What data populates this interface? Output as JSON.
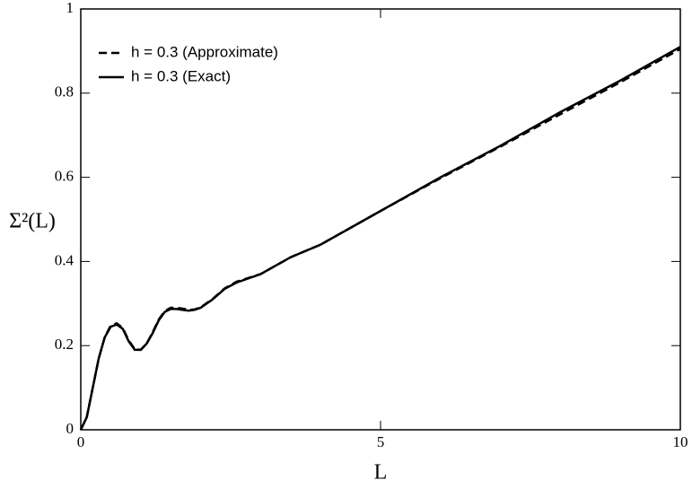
{
  "chart_data": {
    "type": "line",
    "xlabel": "L",
    "ylabel": "Σ²(L)",
    "xlim": [
      0,
      10
    ],
    "xticks": [
      0,
      5,
      10
    ],
    "ylim": [
      0,
      1
    ],
    "yticks": [
      0,
      0.2,
      0.4,
      0.6,
      0.8,
      1
    ],
    "legend": "upper-left",
    "x": [
      0,
      0.1,
      0.2,
      0.3,
      0.4,
      0.5,
      0.6,
      0.7,
      0.8,
      0.9,
      1.0,
      1.1,
      1.2,
      1.3,
      1.4,
      1.5,
      1.6,
      1.7,
      1.8,
      1.9,
      2.0,
      2.2,
      2.4,
      2.6,
      2.8,
      3.0,
      3.5,
      4,
      4.5,
      5,
      6,
      7,
      8,
      9,
      10
    ],
    "series": [
      {
        "name": "h = 0.3 (Approximate)",
        "color": "#000000",
        "dashed": true,
        "values": [
          0,
          0.03,
          0.1,
          0.17,
          0.22,
          0.248,
          0.253,
          0.242,
          0.212,
          0.192,
          0.19,
          0.205,
          0.232,
          0.262,
          0.282,
          0.29,
          0.29,
          0.288,
          0.285,
          0.286,
          0.291,
          0.311,
          0.336,
          0.352,
          0.361,
          0.37,
          0.41,
          0.44,
          0.48,
          0.52,
          0.598,
          0.673,
          0.75,
          0.826,
          0.905
        ]
      },
      {
        "name": "h = 0.3 (Exact)",
        "color": "#000000",
        "dashed": false,
        "values": [
          0,
          0.03,
          0.1,
          0.17,
          0.22,
          0.245,
          0.25,
          0.24,
          0.21,
          0.19,
          0.19,
          0.205,
          0.23,
          0.26,
          0.28,
          0.287,
          0.287,
          0.285,
          0.283,
          0.285,
          0.29,
          0.31,
          0.335,
          0.35,
          0.36,
          0.37,
          0.41,
          0.44,
          0.48,
          0.52,
          0.6,
          0.675,
          0.755,
          0.83,
          0.91
        ]
      }
    ]
  }
}
